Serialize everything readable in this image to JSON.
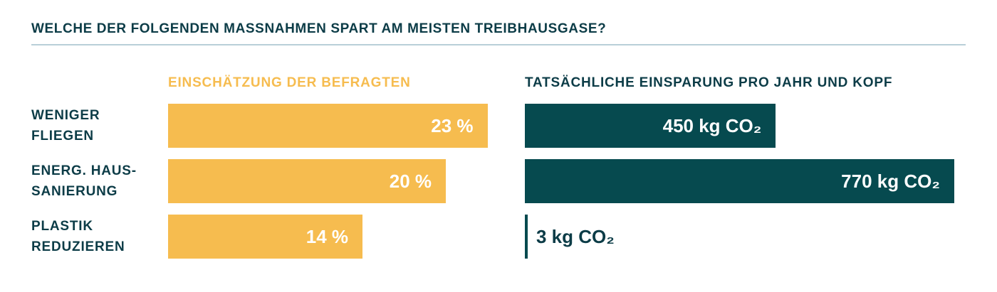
{
  "title": "WELCHE DER FOLGENDEN MASSNAHMEN SPART AM MEISTEN TREIBHAUSGASE?",
  "chart_data": [
    {
      "type": "bar",
      "orientation": "horizontal",
      "subtitle": "EINSCHÄTZUNG DER BEFRAGTEN",
      "categories": [
        "WENIGER FLIEGEN",
        "ENERG. HAUS-SANIERUNG",
        "PLASTIK REDUZIEREN"
      ],
      "values": [
        23,
        20,
        14
      ],
      "value_labels": [
        "23 %",
        "20 %",
        "14 %"
      ],
      "color": "#f6bc4f"
    },
    {
      "type": "bar",
      "orientation": "horizontal",
      "subtitle": "TATSÄCHLICHE EINSPARUNG PRO JAHR UND KOPF",
      "values": [
        450,
        770,
        3
      ],
      "value_labels": [
        "450 kg CO₂",
        "770 kg CO₂",
        "3 kg CO₂"
      ],
      "color": "#064a4f"
    }
  ]
}
